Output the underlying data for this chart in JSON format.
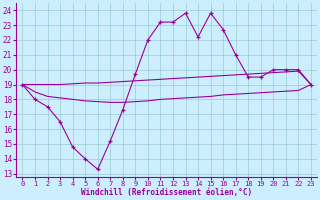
{
  "xlabel": "Windchill (Refroidissement éolien,°C)",
  "background_color": "#cceeff",
  "line_color": "#990099",
  "grid_color": "#99cccc",
  "x_ticks": [
    0,
    1,
    2,
    3,
    4,
    5,
    6,
    7,
    8,
    9,
    10,
    11,
    12,
    13,
    14,
    15,
    16,
    17,
    18,
    19,
    20,
    21,
    22,
    23
  ],
  "y_ticks": [
    13,
    14,
    15,
    16,
    17,
    18,
    19,
    20,
    21,
    22,
    23,
    24
  ],
  "ylim": [
    12.8,
    24.5
  ],
  "xlim": [
    -0.5,
    23.5
  ],
  "series1": [
    19.0,
    18.0,
    17.5,
    16.5,
    14.8,
    14.0,
    13.3,
    15.2,
    17.3,
    19.7,
    22.0,
    23.2,
    23.2,
    23.8,
    22.2,
    23.8,
    22.7,
    21.0,
    19.5,
    19.5,
    20.0,
    20.0,
    20.0,
    19.0
  ],
  "series2": [
    19.0,
    19.0,
    19.0,
    19.0,
    19.05,
    19.1,
    19.1,
    19.15,
    19.2,
    19.25,
    19.3,
    19.35,
    19.4,
    19.45,
    19.5,
    19.55,
    19.6,
    19.65,
    19.7,
    19.75,
    19.8,
    19.85,
    19.9,
    19.0
  ],
  "series3": [
    19.0,
    18.5,
    18.2,
    18.1,
    18.0,
    17.9,
    17.85,
    17.8,
    17.8,
    17.85,
    17.9,
    18.0,
    18.05,
    18.1,
    18.15,
    18.2,
    18.3,
    18.35,
    18.4,
    18.45,
    18.5,
    18.55,
    18.6,
    19.0
  ]
}
